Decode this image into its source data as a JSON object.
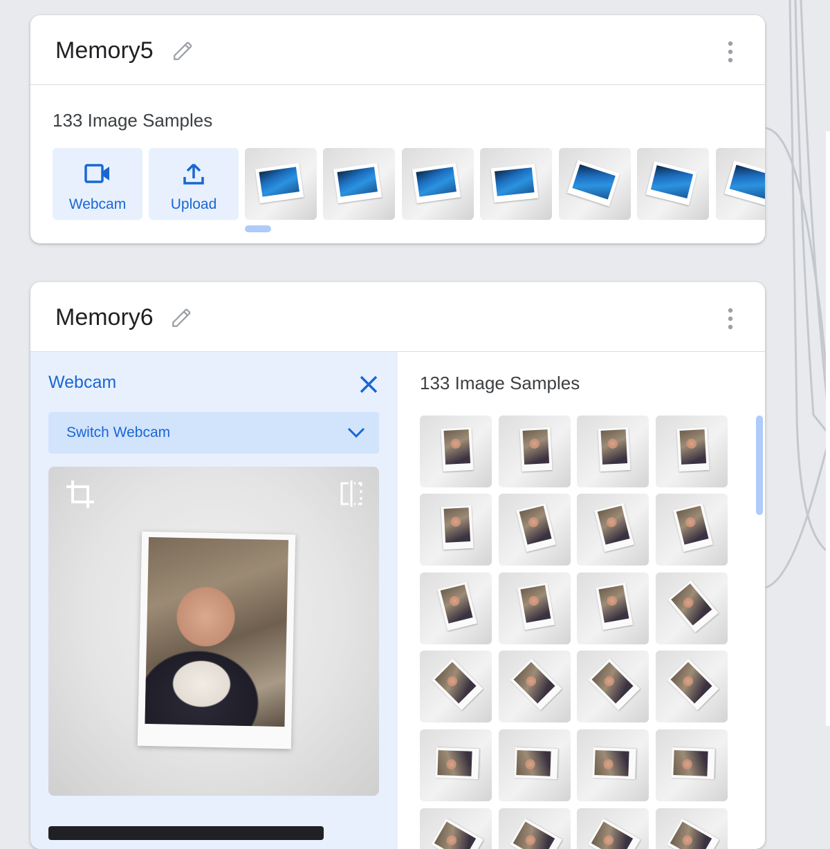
{
  "classes": [
    {
      "title": "Memory5",
      "sample_count_label": "133 Image Samples",
      "add_buttons": [
        {
          "label": "Webcam",
          "icon": "videocam-icon"
        },
        {
          "label": "Upload",
          "icon": "upload-icon"
        }
      ],
      "visible_thumbnails": 7
    },
    {
      "title": "Memory6",
      "webcam_panel": {
        "title": "Webcam",
        "switch_label": "Switch Webcam"
      },
      "sample_count_label": "133 Image Samples",
      "visible_thumbnails": 24
    }
  ],
  "colors": {
    "accent": "#1967d2",
    "panel_bg": "#e8f0fe",
    "page_bg": "#e8eaed"
  }
}
